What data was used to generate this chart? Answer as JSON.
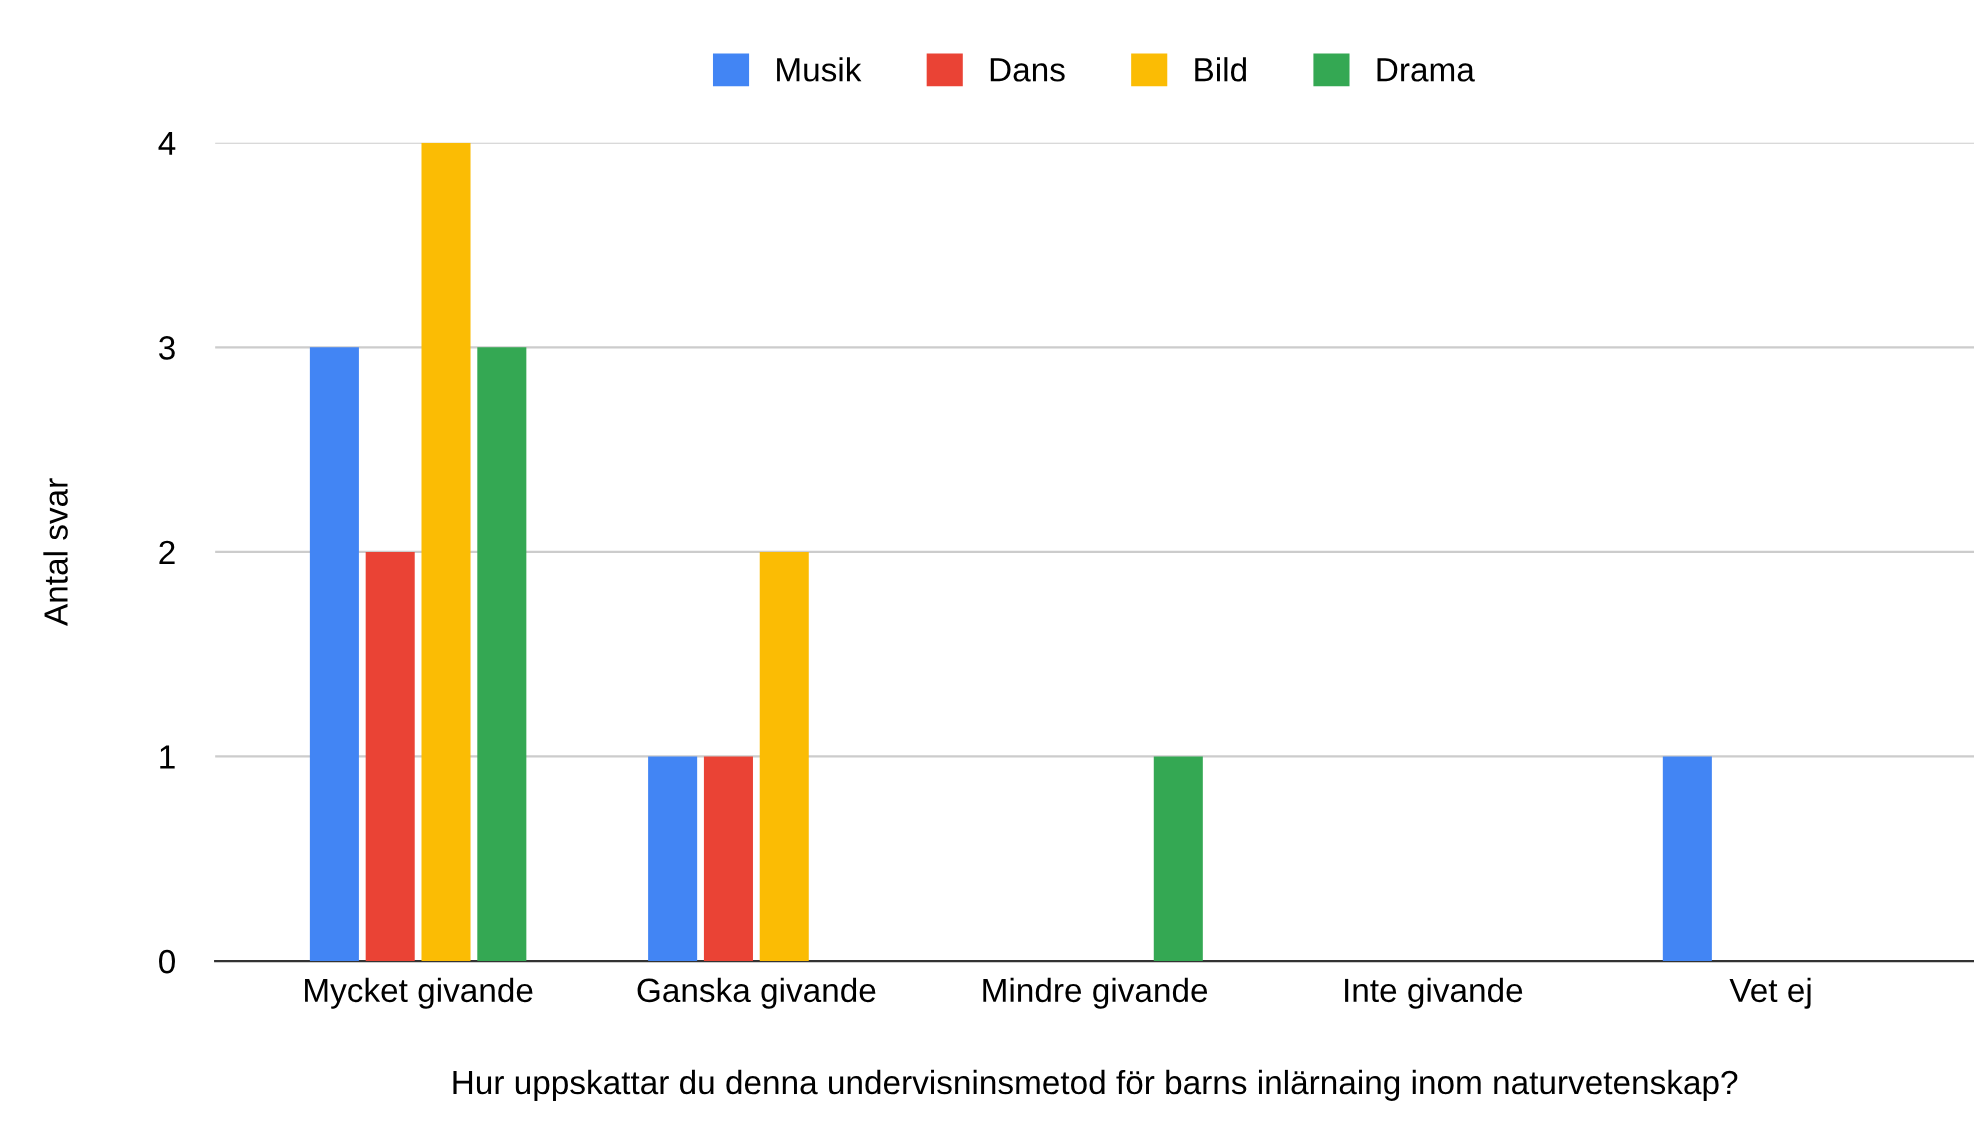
{
  "chart_data": {
    "type": "bar",
    "xlabel": "Hur uppskattar du denna undervisninsmetod för barns inlärnaing inom naturvetenskap?",
    "ylabel": "Antal svar",
    "categories": [
      "Mycket givande",
      "Ganska givande",
      "Mindre givande",
      "Inte givande",
      "Vet ej"
    ],
    "series": [
      {
        "name": "Musik",
        "color": "#4285f4",
        "values": [
          3,
          1,
          0,
          0,
          1
        ]
      },
      {
        "name": "Dans",
        "color": "#ea4335",
        "values": [
          2,
          1,
          0,
          0,
          0
        ]
      },
      {
        "name": "Bild",
        "color": "#fbbc04",
        "values": [
          4,
          2,
          0,
          0,
          0
        ]
      },
      {
        "name": "Drama",
        "color": "#34a853",
        "values": [
          3,
          0,
          1,
          0,
          0
        ]
      }
    ],
    "ylim": [
      0,
      4
    ],
    "yticks": [
      0,
      1,
      2,
      3,
      4
    ],
    "grid": "y",
    "legend": "top"
  }
}
